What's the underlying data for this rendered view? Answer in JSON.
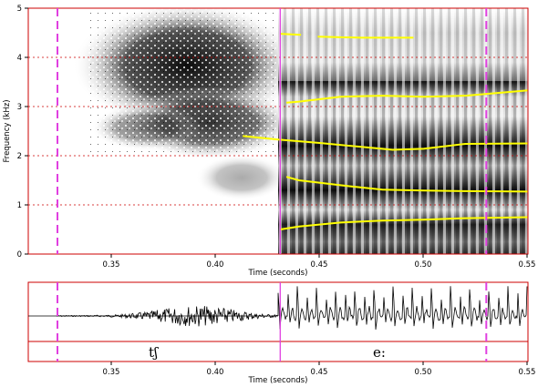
{
  "spectrogram": {
    "ylabel": "Frequency (kHz)",
    "xlabel": "Time (seconds)",
    "xlim": [
      0.31,
      0.55
    ],
    "ylim": [
      0,
      5
    ],
    "x_ticks": [
      "0.35",
      "0.40",
      "0.45",
      "0.50",
      "0.55"
    ],
    "y_ticks": [
      "0",
      "1",
      "2",
      "3",
      "4",
      "5"
    ]
  },
  "waveform": {
    "xlabel": "Time (seconds)",
    "x_ticks": [
      "0.35",
      "0.40",
      "0.45",
      "0.50",
      "0.55"
    ]
  },
  "segments": [
    {
      "label": "tʃ",
      "start": 0.324,
      "end": 0.431
    },
    {
      "label": "e:",
      "start": 0.431,
      "end": 0.55
    }
  ],
  "markers": [
    {
      "time": 0.324,
      "style": "dashed"
    },
    {
      "time": 0.431,
      "style": "solid"
    },
    {
      "time": 0.53,
      "style": "dashed"
    }
  ],
  "chart_data": {
    "type": "line",
    "title": "",
    "xlabel": "Time (seconds)",
    "ylabel": "Frequency (kHz)",
    "xlim": [
      0.31,
      0.55
    ],
    "ylim": [
      0,
      5
    ],
    "grid": "horizontal dotted",
    "series": [
      {
        "x": [
          0.431,
          0.44,
          0.46,
          0.48,
          0.5,
          0.52,
          0.55
        ],
        "y": [
          0.5,
          0.56,
          0.64,
          0.68,
          0.7,
          0.73,
          0.75
        ]
      },
      {
        "x": [
          0.434,
          0.44,
          0.46,
          0.48,
          0.5,
          0.52,
          0.55
        ],
        "y": [
          1.57,
          1.5,
          1.4,
          1.31,
          1.29,
          1.28,
          1.27
        ]
      },
      {
        "x": [
          0.413,
          0.43,
          0.45,
          0.47,
          0.485,
          0.5,
          0.52,
          0.55
        ],
        "y": [
          2.4,
          2.33,
          2.26,
          2.18,
          2.12,
          2.14,
          2.24,
          2.25
        ]
      },
      {
        "x": [
          0.434,
          0.44,
          0.46,
          0.48,
          0.5,
          0.52,
          0.55
        ],
        "y": [
          3.08,
          3.1,
          3.2,
          3.22,
          3.2,
          3.22,
          3.33
        ]
      },
      {
        "x": [
          0.431,
          0.441
        ],
        "y": [
          4.48,
          4.46
        ]
      },
      {
        "x": [
          0.449,
          0.47,
          0.495
        ],
        "y": [
          4.42,
          4.4,
          4.4
        ]
      }
    ],
    "formant_color": "#ffff00",
    "marker_color": "#e040e0",
    "frame_color": "#cc0000"
  }
}
